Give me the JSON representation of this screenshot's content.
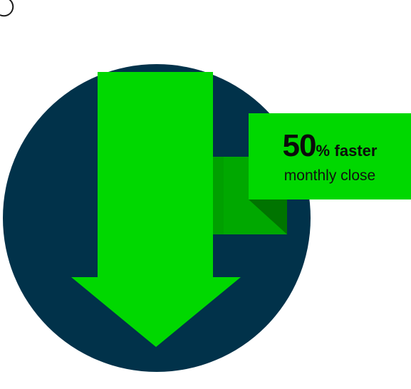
{
  "colors": {
    "circle": "#01324a",
    "arrow": "#00d800",
    "fold_mid": "#00a800",
    "fold_dark": "#007400",
    "badge_bg": "#00d800",
    "badge_text": "#0b0b0b"
  },
  "icons": {
    "arrow": "down-arrow-icon",
    "circle": "circle-background"
  },
  "badge": {
    "value": "50",
    "unit": "%",
    "word": "faster",
    "subtitle": "monthly close"
  }
}
